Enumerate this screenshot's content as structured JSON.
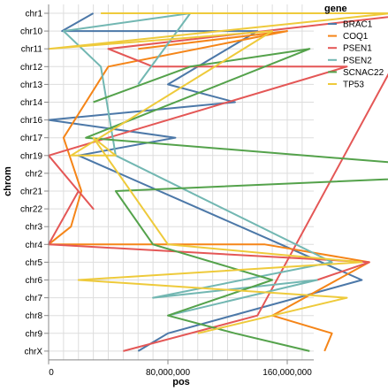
{
  "chart_data": {
    "type": "line",
    "xlabel": "pos",
    "ylabel": "chrom",
    "xlim": [
      0,
      160000000
    ],
    "x_tick_labels": [
      "0",
      "80,000,000",
      "160,000,000"
    ],
    "categories": [
      "chr1",
      "chr10",
      "chr11",
      "chr12",
      "chr13",
      "chr14",
      "chr16",
      "chr17",
      "chr19",
      "chr2",
      "chr21",
      "chr22",
      "chr3",
      "chr4",
      "chr5",
      "chr6",
      "chr7",
      "chr8",
      "chr9",
      "chrX"
    ],
    "legend_title": "gene",
    "legend_position": "top-right",
    "grid": true,
    "series": [
      {
        "name": "BRAC1",
        "color": "#4c78a8",
        "points": [
          {
            "x": 30000000,
            "y": "chr1"
          },
          {
            "x": 9000000,
            "y": "chr10"
          },
          {
            "x": 140000000,
            "y": "chr10"
          },
          {
            "x": 80000000,
            "y": "chr13"
          },
          {
            "x": 125000000,
            "y": "chr14"
          },
          {
            "x": 0,
            "y": "chr16"
          },
          {
            "x": 85000000,
            "y": "chr17"
          },
          {
            "x": 20000000,
            "y": "chr19"
          },
          {
            "x": 210000000,
            "y": "chr6"
          },
          {
            "x": 80000000,
            "y": "chr9"
          },
          {
            "x": 60000000,
            "y": "chrX"
          }
        ]
      },
      {
        "name": "COQ1",
        "color": "#f58518",
        "points": [
          {
            "x": 60000000,
            "y": "chr11"
          },
          {
            "x": 160000000,
            "y": "chr10"
          },
          {
            "x": 40000000,
            "y": "chr12"
          },
          {
            "x": 10000000,
            "y": "chr17"
          },
          {
            "x": 22000000,
            "y": "chr21"
          },
          {
            "x": 15000000,
            "y": "chr3"
          },
          {
            "x": 0,
            "y": "chr4"
          },
          {
            "x": 145000000,
            "y": "chr4"
          },
          {
            "x": 215000000,
            "y": "chr5"
          },
          {
            "x": 150000000,
            "y": "chr8"
          },
          {
            "x": 190000000,
            "y": "chr9"
          },
          {
            "x": 185000000,
            "y": "chrX"
          }
        ]
      },
      {
        "name": "PSEN1",
        "color": "#e45756",
        "points": [
          {
            "x": 50000000,
            "y": "chrX"
          },
          {
            "x": 140000000,
            "y": "chr8"
          },
          {
            "x": 250000000,
            "y": "chr1"
          },
          {
            "x": 40000000,
            "y": "chr11"
          },
          {
            "x": 70000000,
            "y": "chr12"
          },
          {
            "x": 200000000,
            "y": "chr12"
          },
          {
            "x": 0,
            "y": "chr19"
          },
          {
            "x": 30000000,
            "y": "chr22"
          },
          {
            "x": 20000000,
            "y": "chr21"
          },
          {
            "x": 0,
            "y": "chr4"
          },
          {
            "x": 215000000,
            "y": "chr5"
          },
          {
            "x": 180000000,
            "y": "chr6"
          }
        ]
      },
      {
        "name": "PSEN2",
        "color": "#72b7b2",
        "points": [
          {
            "x": 60000000,
            "y": "chr13"
          },
          {
            "x": 95000000,
            "y": "chr1"
          },
          {
            "x": 10000000,
            "y": "chr10"
          },
          {
            "x": 35000000,
            "y": "chr12"
          },
          {
            "x": 45000000,
            "y": "chr19"
          },
          {
            "x": 190000000,
            "y": "chr5"
          },
          {
            "x": 70000000,
            "y": "chr7"
          },
          {
            "x": 180000000,
            "y": "chr6"
          },
          {
            "x": 80000000,
            "y": "chr8"
          }
        ]
      },
      {
        "name": "SCNAC22",
        "color": "#54a24b",
        "points": [
          {
            "x": 30000000,
            "y": "chr14"
          },
          {
            "x": 95000000,
            "y": "chr12"
          },
          {
            "x": 175000000,
            "y": "chr11"
          },
          {
            "x": 25000000,
            "y": "chr17"
          },
          {
            "x": 320000000,
            "y": "chr2"
          },
          {
            "x": 45000000,
            "y": "chr21"
          },
          {
            "x": 70000000,
            "y": "chr4"
          },
          {
            "x": 150000000,
            "y": "chr6"
          },
          {
            "x": 80000000,
            "y": "chr8"
          },
          {
            "x": 125000000,
            "y": "chr9"
          },
          {
            "x": 175000000,
            "y": "chrX"
          }
        ]
      },
      {
        "name": "TP53",
        "color": "#eeca3b",
        "points": [
          {
            "x": 35000000,
            "y": "chr1"
          },
          {
            "x": 230000000,
            "y": "chr1"
          },
          {
            "x": 0,
            "y": "chr11"
          },
          {
            "x": 150000000,
            "y": "chr10"
          },
          {
            "x": 15000000,
            "y": "chr19"
          },
          {
            "x": 45000000,
            "y": "chr19"
          },
          {
            "x": 30000000,
            "y": "chr17"
          },
          {
            "x": 80000000,
            "y": "chr4"
          },
          {
            "x": 210000000,
            "y": "chr5"
          },
          {
            "x": 20000000,
            "y": "chr6"
          },
          {
            "x": 200000000,
            "y": "chr7"
          },
          {
            "x": 100000000,
            "y": "chr9"
          }
        ]
      }
    ]
  }
}
